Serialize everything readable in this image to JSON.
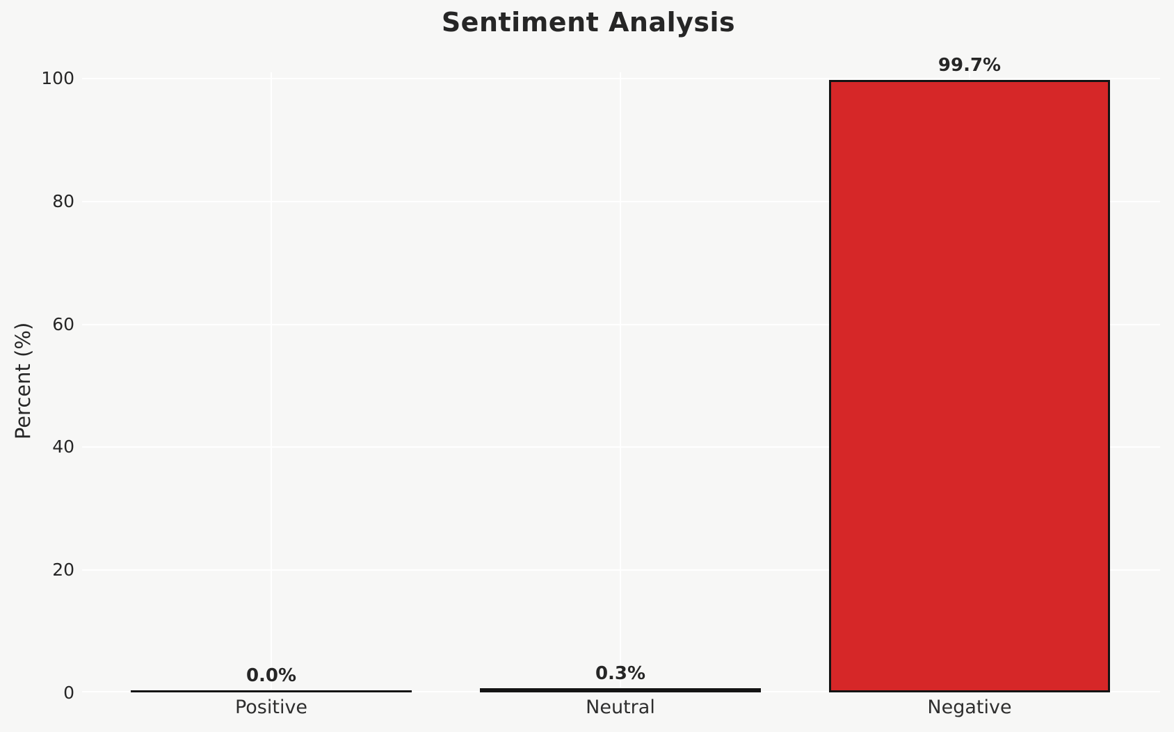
{
  "chart_data": {
    "type": "bar",
    "title": "Sentiment Analysis",
    "xlabel": "",
    "ylabel": "Percent (%)",
    "categories": [
      "Positive",
      "Neutral",
      "Negative"
    ],
    "values": [
      0.0,
      0.3,
      99.7
    ],
    "value_labels": [
      "0.0%",
      "0.3%",
      "99.7%"
    ],
    "yticks": [
      0,
      20,
      40,
      60,
      80,
      100
    ],
    "ylim": [
      0,
      105
    ],
    "grid": true,
    "legend": "none",
    "bar_color": "#d62728",
    "bar_edge_color": "#141414",
    "background_color": "#f7f7f6",
    "gridline_color": "#ffffff"
  }
}
